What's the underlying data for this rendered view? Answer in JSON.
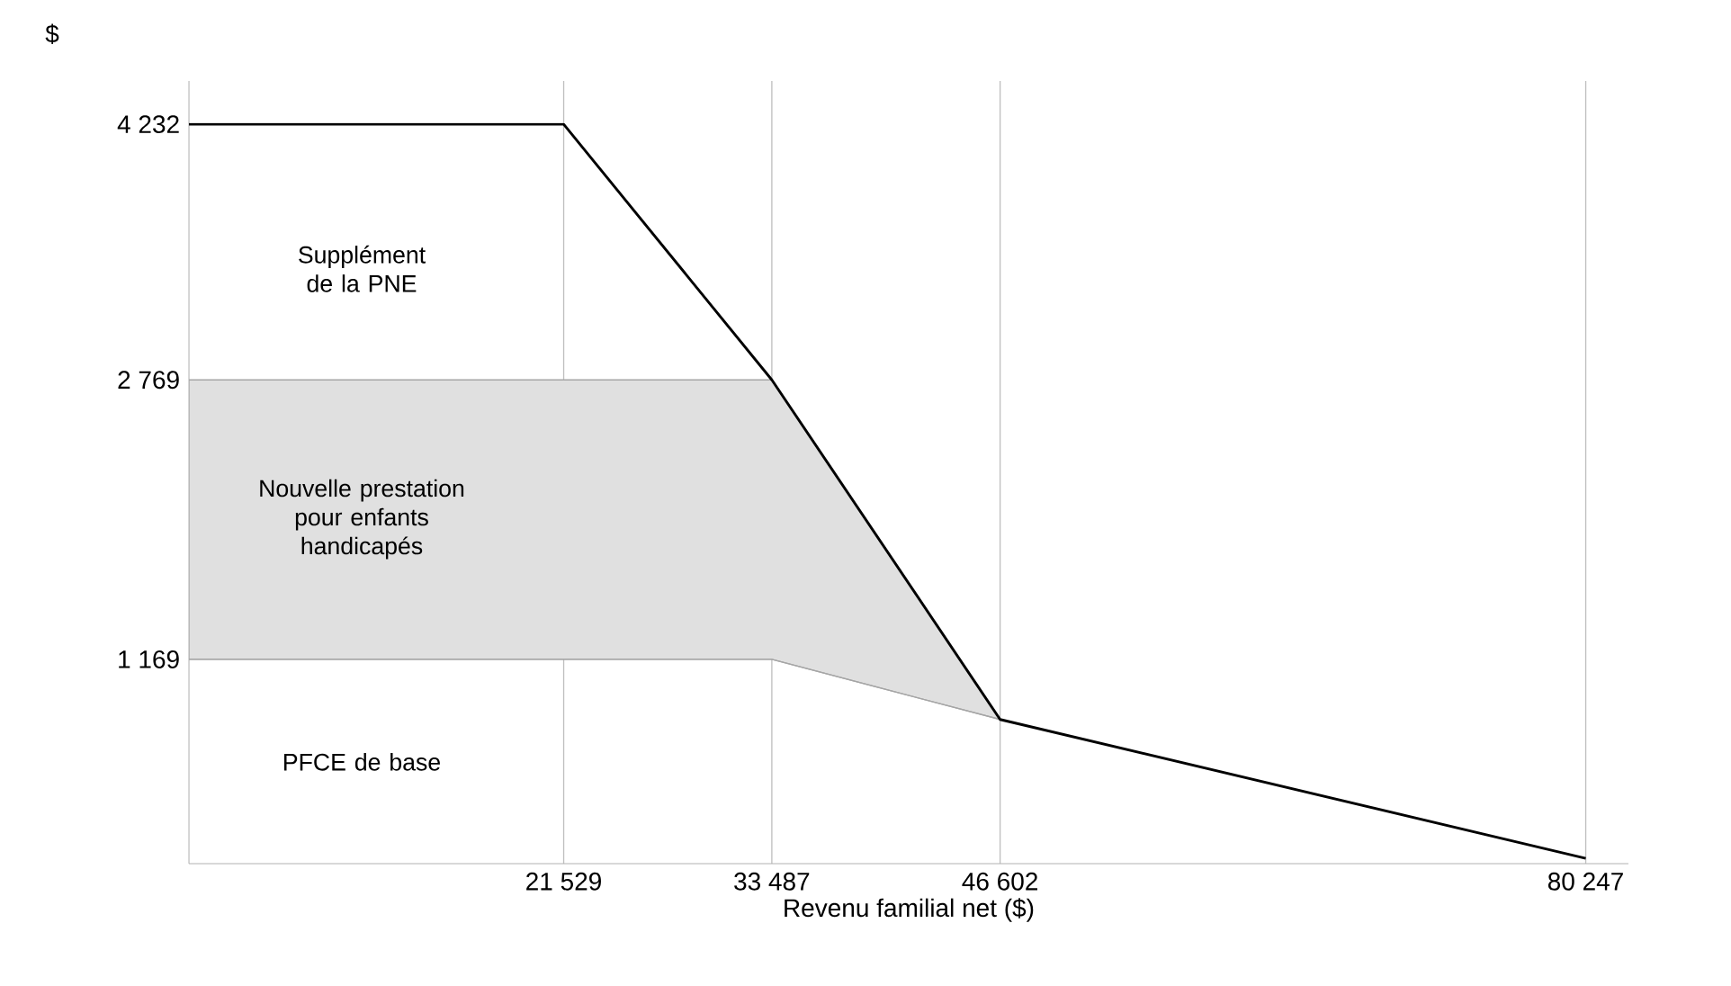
{
  "chart_data": {
    "type": "line",
    "xlabel": "Revenu familial net ($)",
    "ylabel": "$",
    "xlim": [
      0,
      82700
    ],
    "ylim": [
      0,
      4480
    ],
    "xticks": [
      {
        "value": 21529,
        "label": "21 529"
      },
      {
        "value": 33487,
        "label": "33 487"
      },
      {
        "value": 46602,
        "label": "46 602"
      },
      {
        "value": 80247,
        "label": "80 247"
      }
    ],
    "yticks": [
      {
        "value": 1169,
        "label": "1 169"
      },
      {
        "value": 2769,
        "label": "2 769"
      },
      {
        "value": 4232,
        "label": "4 232"
      }
    ],
    "grid": "x",
    "marker": "none",
    "line_style": "solid",
    "series": [
      {
        "type": "line",
        "color": "#a6a6a6",
        "x": [
          0,
          33487,
          46602
        ],
        "values": [
          1169,
          1169,
          825
        ],
        "lower": [
          1169,
          1169,
          825
        ],
        "upper": [
          2769,
          2769,
          825
        ]
      },
      {
        "color": "#000000",
        "x": [
          0,
          21529,
          33487,
          46602,
          80247
        ],
        "values": [
          4232,
          4232,
          2769,
          825,
          30
        ]
      }
    ],
    "annotations": [
      "Supplément de la PNE",
      "Nouvelle prestation pour enfants handicapés",
      "PFCE de base"
    ]
  }
}
